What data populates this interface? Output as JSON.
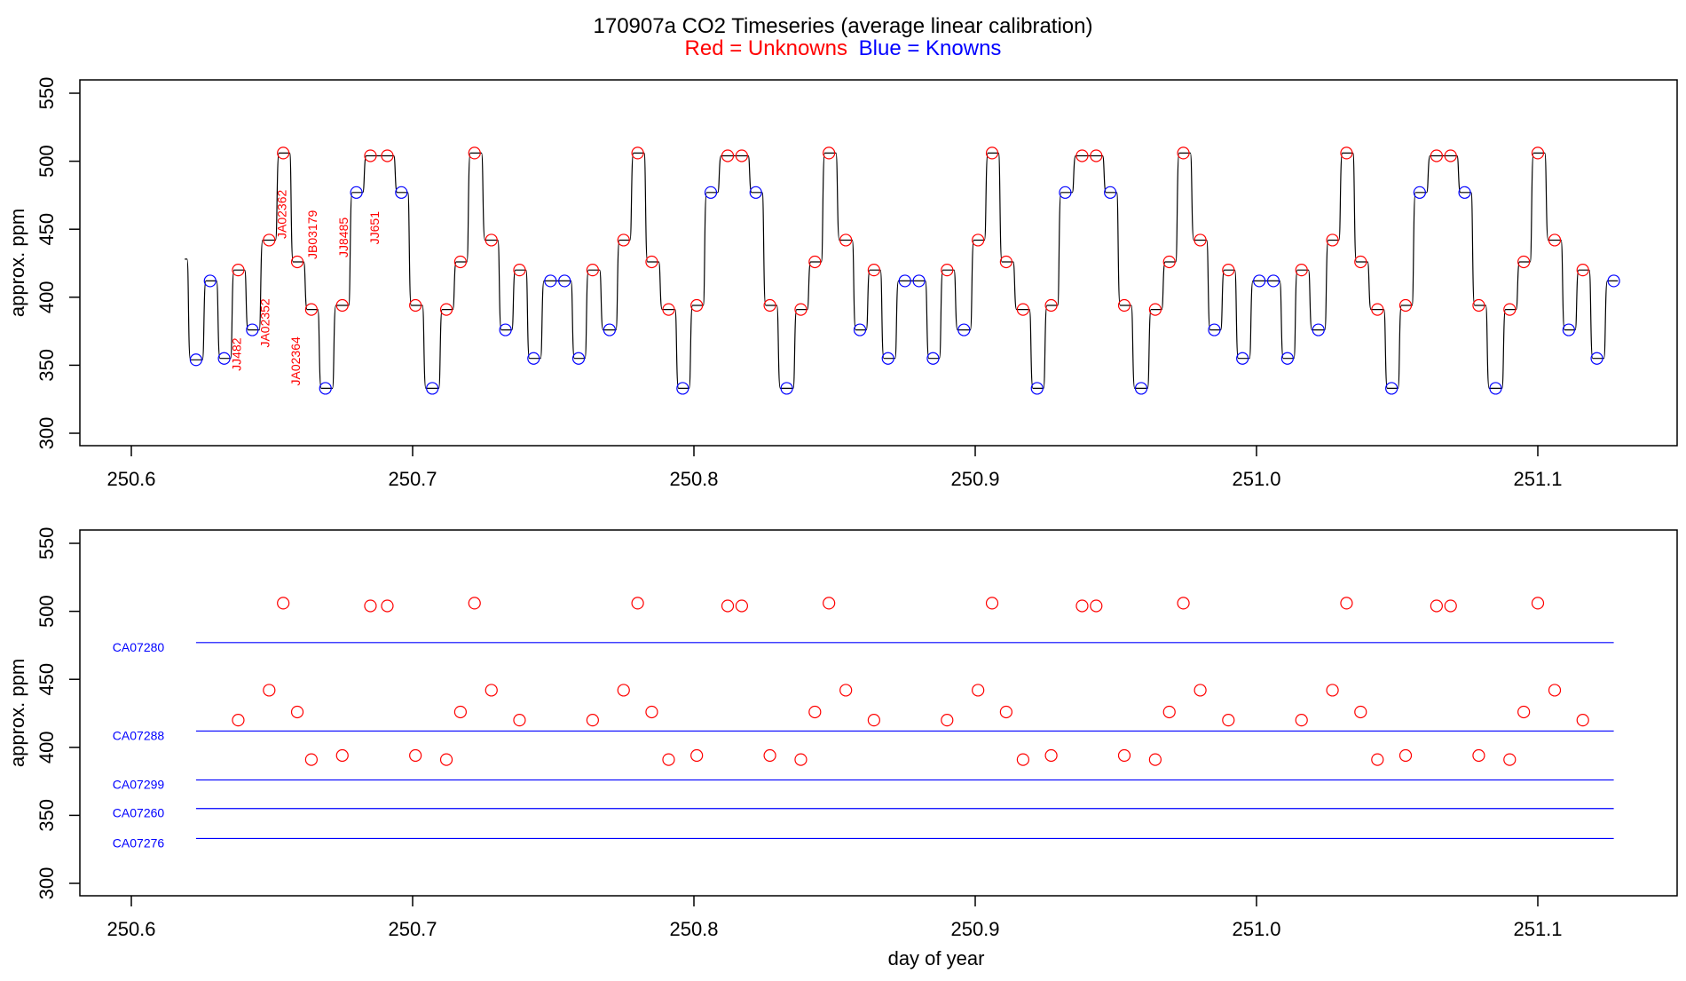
{
  "figure": {
    "title": "170907a   CO2 Timeseries (average linear calibration)",
    "legend_red": "Red = Unknowns",
    "legend_blue": "Blue = Knowns",
    "colors": {
      "unknown": "#ff0000",
      "known": "#0000ff",
      "trace": "#000000"
    }
  },
  "chart_data": [
    {
      "type": "line",
      "panel": "top",
      "ylabel": "approx. ppm",
      "xlabel": "",
      "xlim": [
        250.6,
        251.13
      ],
      "ylim": [
        300,
        550
      ],
      "xticks": [
        "250.6",
        "250.7",
        "250.8",
        "250.9",
        "251.0",
        "251.1"
      ],
      "yticks": [
        "300",
        "350",
        "400",
        "450",
        "500",
        "550"
      ],
      "sample_labels": [
        {
          "text": "JJ482",
          "x": 250.639,
          "y": 358
        },
        {
          "text": "JA02352",
          "x": 250.649,
          "y": 381
        },
        {
          "text": "JA02362",
          "x": 250.655,
          "y": 461
        },
        {
          "text": "JA02364",
          "x": 250.66,
          "y": 353
        },
        {
          "text": "JB03179",
          "x": 250.666,
          "y": 446
        },
        {
          "text": "JJ8485",
          "x": 250.677,
          "y": 444
        },
        {
          "text": "JJ651",
          "x": 250.688,
          "y": 451
        }
      ],
      "series": [
        {
          "name": "Unknowns",
          "points": [
            [
              250.638,
              420
            ],
            [
              250.649,
              442
            ],
            [
              250.654,
              506
            ],
            [
              250.659,
              426
            ],
            [
              250.664,
              391
            ],
            [
              250.675,
              394
            ],
            [
              250.685,
              504
            ],
            [
              250.691,
              504
            ],
            [
              250.701,
              394
            ],
            [
              250.712,
              391
            ],
            [
              250.717,
              426
            ],
            [
              250.722,
              506
            ],
            [
              250.728,
              442
            ],
            [
              250.738,
              420
            ],
            [
              250.764,
              420
            ],
            [
              250.775,
              442
            ],
            [
              250.78,
              506
            ],
            [
              250.785,
              426
            ],
            [
              250.791,
              391
            ],
            [
              250.801,
              394
            ],
            [
              250.812,
              504
            ],
            [
              250.817,
              504
            ],
            [
              250.827,
              394
            ],
            [
              250.838,
              391
            ],
            [
              250.843,
              426
            ],
            [
              250.848,
              506
            ],
            [
              250.854,
              442
            ],
            [
              250.864,
              420
            ],
            [
              250.89,
              420
            ],
            [
              250.901,
              442
            ],
            [
              250.906,
              506
            ],
            [
              250.911,
              426
            ],
            [
              250.917,
              391
            ],
            [
              250.927,
              394
            ],
            [
              250.938,
              504
            ],
            [
              250.943,
              504
            ],
            [
              250.953,
              394
            ],
            [
              250.964,
              391
            ],
            [
              250.969,
              426
            ],
            [
              250.974,
              506
            ],
            [
              250.98,
              442
            ],
            [
              250.99,
              420
            ],
            [
              251.016,
              420
            ],
            [
              251.027,
              442
            ],
            [
              251.032,
              506
            ],
            [
              251.037,
              426
            ],
            [
              251.043,
              391
            ],
            [
              251.053,
              394
            ],
            [
              251.064,
              504
            ],
            [
              251.069,
              504
            ],
            [
              251.079,
              394
            ],
            [
              251.09,
              391
            ],
            [
              251.095,
              426
            ],
            [
              251.1,
              506
            ],
            [
              251.106,
              442
            ],
            [
              251.116,
              420
            ]
          ]
        },
        {
          "name": "Knowns",
          "points": [
            [
              250.623,
              354
            ],
            [
              250.628,
              412
            ],
            [
              250.633,
              355
            ],
            [
              250.643,
              376
            ],
            [
              250.669,
              333
            ],
            [
              250.68,
              477
            ],
            [
              250.696,
              477
            ],
            [
              250.707,
              333
            ],
            [
              250.733,
              376
            ],
            [
              250.743,
              355
            ],
            [
              250.749,
              412
            ],
            [
              250.754,
              412
            ],
            [
              250.759,
              355
            ],
            [
              250.77,
              376
            ],
            [
              250.796,
              333
            ],
            [
              250.806,
              477
            ],
            [
              250.822,
              477
            ],
            [
              250.833,
              333
            ],
            [
              250.859,
              376
            ],
            [
              250.869,
              355
            ],
            [
              250.875,
              412
            ],
            [
              250.88,
              412
            ],
            [
              250.885,
              355
            ],
            [
              250.896,
              376
            ],
            [
              250.922,
              333
            ],
            [
              250.932,
              477
            ],
            [
              250.948,
              477
            ],
            [
              250.959,
              333
            ],
            [
              250.985,
              376
            ],
            [
              250.995,
              355
            ],
            [
              251.001,
              412
            ],
            [
              251.006,
              412
            ],
            [
              251.011,
              355
            ],
            [
              251.022,
              376
            ],
            [
              251.048,
              333
            ],
            [
              251.058,
              477
            ],
            [
              251.074,
              477
            ],
            [
              251.085,
              333
            ],
            [
              251.111,
              376
            ],
            [
              251.121,
              355
            ],
            [
              251.127,
              412
            ]
          ]
        }
      ]
    },
    {
      "type": "scatter",
      "panel": "bottom",
      "ylabel": "approx. ppm",
      "xlabel": "day of year",
      "xlim": [
        250.6,
        251.13
      ],
      "ylim": [
        300,
        550
      ],
      "xticks": [
        "250.6",
        "250.7",
        "250.8",
        "250.9",
        "251.0",
        "251.1"
      ],
      "yticks": [
        "300",
        "350",
        "400",
        "450",
        "500",
        "550"
      ],
      "reference_lines": [
        {
          "name": "CA07280",
          "x": [
            250.623,
            251.127
          ],
          "y": [
            477,
            477
          ]
        },
        {
          "name": "CA07288",
          "x": [
            250.623,
            251.127
          ],
          "y": [
            412,
            412
          ]
        },
        {
          "name": "CA07299",
          "x": [
            250.623,
            251.127
          ],
          "y": [
            376,
            376
          ]
        },
        {
          "name": "CA07260",
          "x": [
            250.623,
            251.127
          ],
          "y": [
            355,
            355
          ]
        },
        {
          "name": "CA07276",
          "x": [
            250.623,
            251.127
          ],
          "y": [
            333,
            333
          ]
        }
      ],
      "series": [
        {
          "name": "Unknowns",
          "points_ref": "same as top panel unknowns"
        }
      ]
    }
  ]
}
